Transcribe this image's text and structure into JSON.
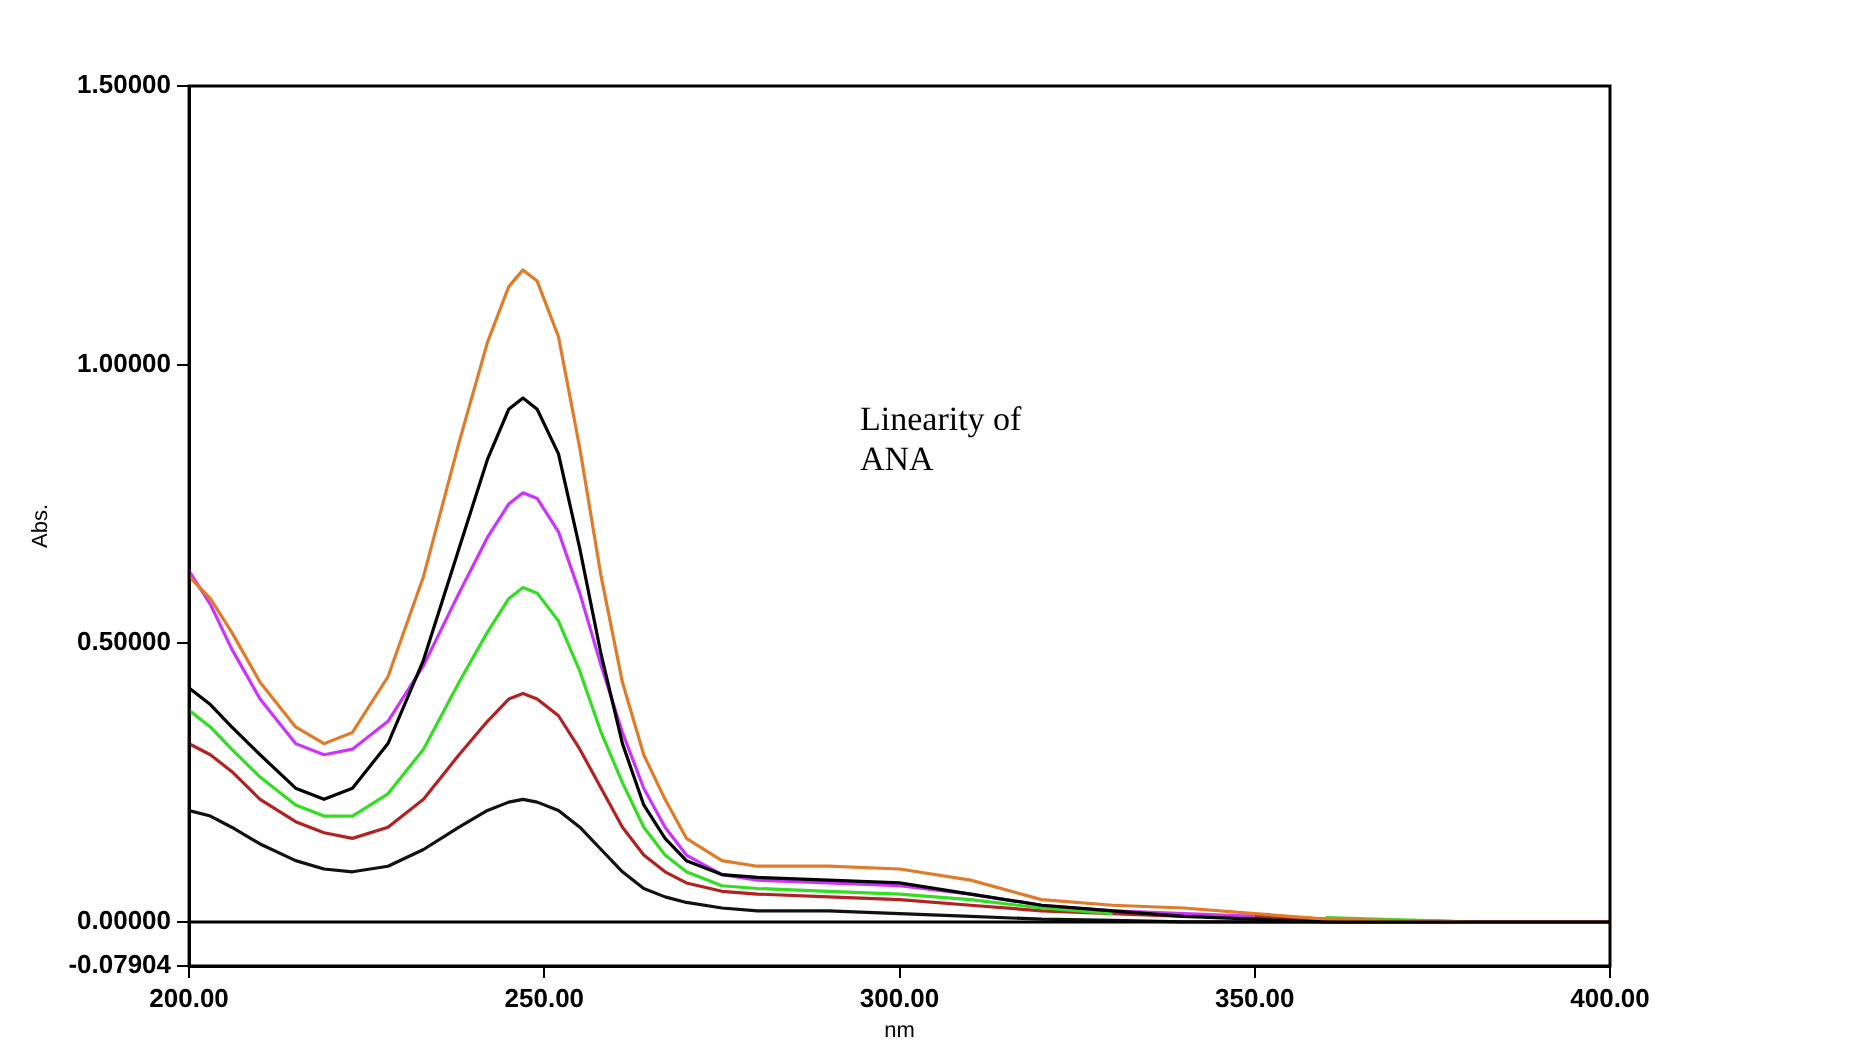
{
  "chart_data": {
    "type": "line",
    "xlabel": "nm",
    "ylabel": "Abs.",
    "annotations": [
      "Linearity of ANA"
    ],
    "x": [
      200,
      203,
      206,
      210,
      215,
      219,
      223,
      228,
      233,
      238,
      242,
      245,
      247,
      249,
      252,
      255,
      258,
      261,
      264,
      267,
      270,
      275,
      280,
      290,
      300,
      310,
      320,
      330,
      340,
      350,
      360,
      380,
      400
    ],
    "xlim": [
      200,
      400
    ],
    "xticks": [
      {
        "value": 200,
        "label": "200.00"
      },
      {
        "value": 250,
        "label": "250.00"
      },
      {
        "value": 300,
        "label": "300.00"
      },
      {
        "value": 350,
        "label": "350.00"
      },
      {
        "value": 400,
        "label": "400.00"
      }
    ],
    "ylim": [
      -0.07904,
      1.5
    ],
    "yticks": [
      -0.07904,
      {
        "value": 0,
        "label": "0.00000"
      },
      {
        "value": 0.5,
        "label": "0.50000"
      },
      {
        "value": 1,
        "label": "1.00000"
      },
      {
        "value": 1.5,
        "label": "1.50000"
      }
    ],
    "grid": false,
    "legend": false,
    "marker": "none",
    "line_style": "solid",
    "ref_lines": [
      {
        "axis": "y",
        "value": 0,
        "color": "#000000"
      }
    ],
    "series": [
      {
        "color": "#e07b2a",
        "values": [
          0.62,
          0.58,
          0.52,
          0.43,
          0.35,
          0.32,
          0.34,
          0.44,
          0.62,
          0.86,
          1.04,
          1.14,
          1.17,
          1.15,
          1.05,
          0.85,
          0.62,
          0.43,
          0.3,
          0.22,
          0.15,
          0.11,
          0.1,
          0.1,
          0.095,
          0.075,
          0.04,
          0.03,
          0.025,
          0.015,
          0.005,
          0,
          0
        ]
      },
      {
        "color": "#000000",
        "values": [
          0.42,
          0.39,
          0.35,
          0.3,
          0.24,
          0.22,
          0.24,
          0.32,
          0.47,
          0.67,
          0.83,
          0.92,
          0.94,
          0.92,
          0.84,
          0.67,
          0.48,
          0.32,
          0.21,
          0.15,
          0.11,
          0.085,
          0.08,
          0.075,
          0.07,
          0.05,
          0.03,
          0.02,
          0.01,
          0.005,
          0,
          0,
          0
        ]
      },
      {
        "color": "#cc33ff",
        "values": [
          0.63,
          0.57,
          0.49,
          0.4,
          0.32,
          0.3,
          0.31,
          0.36,
          0.46,
          0.59,
          0.69,
          0.75,
          0.77,
          0.76,
          0.7,
          0.59,
          0.46,
          0.34,
          0.24,
          0.17,
          0.12,
          0.085,
          0.075,
          0.07,
          0.065,
          0.05,
          0.03,
          0.02,
          0.015,
          0.01,
          null,
          0,
          0
        ]
      },
      {
        "color": "#33dd22",
        "values": [
          0.38,
          0.35,
          0.31,
          0.26,
          0.21,
          0.19,
          0.19,
          0.23,
          0.31,
          0.43,
          0.52,
          0.58,
          0.6,
          0.59,
          0.54,
          0.45,
          0.34,
          0.25,
          0.17,
          0.12,
          0.09,
          0.065,
          0.06,
          0.055,
          0.05,
          0.04,
          0.025,
          0.015,
          null,
          null,
          0.008,
          0,
          0
        ]
      },
      {
        "color": "#b22222",
        "values": [
          0.32,
          0.3,
          0.27,
          0.22,
          0.18,
          0.16,
          0.15,
          0.17,
          0.22,
          0.3,
          0.36,
          0.4,
          0.41,
          0.4,
          0.37,
          0.31,
          0.24,
          0.17,
          0.12,
          0.09,
          0.07,
          0.055,
          0.05,
          0.045,
          0.04,
          0.03,
          0.02,
          0.015,
          0.01,
          0.01,
          0.005,
          0,
          0
        ]
      },
      {
        "color": "#111111",
        "values": [
          0.2,
          0.19,
          0.17,
          0.14,
          0.11,
          0.095,
          0.09,
          0.1,
          0.13,
          0.17,
          0.2,
          0.215,
          0.22,
          0.215,
          0.2,
          0.17,
          0.13,
          0.09,
          0.06,
          0.045,
          0.035,
          0.025,
          0.02,
          0.02,
          0.015,
          0.01,
          0.005,
          0.003,
          0,
          0,
          0,
          0,
          0
        ]
      }
    ]
  }
}
